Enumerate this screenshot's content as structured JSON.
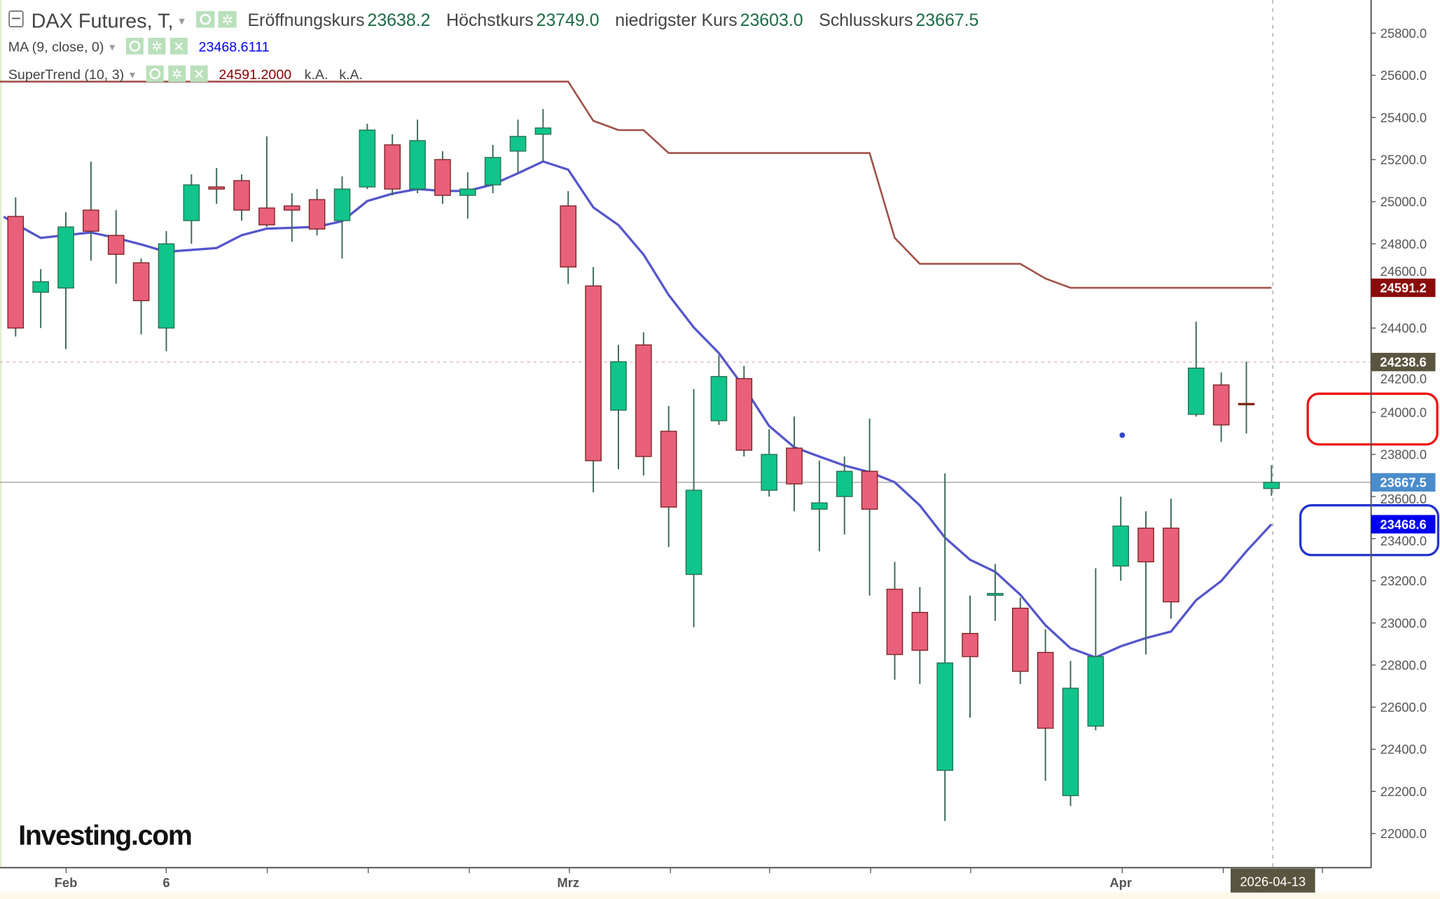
{
  "header": {
    "symbol": "DAX Futures, T,",
    "open_label": "Eröffnungskurs",
    "open_value": "23638.2",
    "high_label": "Höchstkurs",
    "high_value": "23749.0",
    "low_label": "niedrigster Kurs",
    "low_value": "23603.0",
    "close_label": "Schlusskurs",
    "close_value": "23667.5"
  },
  "indicators": [
    {
      "label": "MA (9, close, 0)",
      "value": "23468.6111",
      "color": "#0000ee"
    },
    {
      "label": "SuperTrend (10, 3)",
      "value": "24591.2000",
      "extra1": "k.A.",
      "extra2": "k.A.",
      "color": "#8b0000"
    }
  ],
  "logo": "Investing.com",
  "colors": {
    "up": "#10c48b",
    "down": "#e8607a",
    "ma": "#5555cc",
    "supertrend": "#a0524a"
  },
  "chart_data": {
    "type": "candlestick",
    "ylim": [
      21800,
      25950
    ],
    "y_ticks": [
      22000,
      22200,
      22400,
      22600,
      22800,
      23000,
      23200,
      23400,
      23600,
      23800,
      24000,
      24200,
      24400,
      24600,
      24800,
      25000,
      25200,
      25400,
      25600,
      25800
    ],
    "y_tick_labels": [
      "22000.0",
      "22200.0",
      "22400.0",
      "22600.0",
      "22800.0",
      "23000.0",
      "23200.0",
      "23400.0",
      "23600.0",
      "23800.0",
      "24000.0",
      "24200.0",
      "24400.0",
      "24600.0",
      "24800.0",
      "25000.0",
      "25200.0",
      "25400.0",
      "25600.0",
      "25800.0"
    ],
    "x_labels": [
      {
        "index": 2,
        "label": "Feb"
      },
      {
        "index": 6,
        "label": "6"
      },
      {
        "index": 22,
        "label": "Mrz"
      },
      {
        "index": 44,
        "label": "Apr"
      }
    ],
    "crosshair_date": "2026-04-13",
    "candles": [
      [
        24930,
        25020,
        24360,
        24400
      ],
      [
        24570,
        24680,
        24400,
        24620
      ],
      [
        24590,
        24950,
        24300,
        24880
      ],
      [
        24960,
        25190,
        24720,
        24860
      ],
      [
        24840,
        24960,
        24610,
        24750
      ],
      [
        24710,
        24730,
        24370,
        24530
      ],
      [
        24400,
        24860,
        24290,
        24800
      ],
      [
        24910,
        25130,
        24800,
        25080
      ],
      [
        25070,
        25160,
        24990,
        25060
      ],
      [
        25100,
        25130,
        24910,
        24960
      ],
      [
        24970,
        25310,
        24880,
        24890
      ],
      [
        24980,
        25040,
        24810,
        24960
      ],
      [
        25010,
        25060,
        24840,
        24870
      ],
      [
        24910,
        25120,
        24730,
        25060
      ],
      [
        25070,
        25370,
        25060,
        25340
      ],
      [
        25270,
        25320,
        25030,
        25060
      ],
      [
        25060,
        25390,
        25040,
        25290
      ],
      [
        25200,
        25240,
        24990,
        25030
      ],
      [
        25030,
        25140,
        24920,
        25060
      ],
      [
        25080,
        25270,
        25040,
        25210
      ],
      [
        25240,
        25390,
        25140,
        25310
      ],
      [
        25320,
        25440,
        25190,
        25350
      ],
      [
        24980,
        25050,
        24610,
        24690
      ],
      [
        24600,
        24690,
        23620,
        23770
      ],
      [
        24010,
        24320,
        23730,
        24240
      ],
      [
        24320,
        24380,
        23700,
        23790
      ],
      [
        23910,
        24030,
        23360,
        23550
      ],
      [
        23230,
        24110,
        22980,
        23630
      ],
      [
        23960,
        24270,
        23940,
        24170
      ],
      [
        24160,
        24220,
        23790,
        23820
      ],
      [
        23630,
        23920,
        23600,
        23800
      ],
      [
        23830,
        23980,
        23530,
        23660
      ],
      [
        23540,
        23770,
        23340,
        23570
      ],
      [
        23600,
        23790,
        23420,
        23720
      ],
      [
        23720,
        23970,
        23130,
        23540
      ],
      [
        23160,
        23290,
        22730,
        22850
      ],
      [
        23050,
        23170,
        22710,
        22870
      ],
      [
        22300,
        23710,
        22060,
        22810
      ],
      [
        22950,
        23130,
        22550,
        22840
      ],
      [
        23135,
        23280,
        23010,
        23140
      ],
      [
        23070,
        23120,
        22710,
        22770
      ],
      [
        22860,
        22970,
        22250,
        22500
      ],
      [
        22180,
        22820,
        22130,
        22690
      ],
      [
        22510,
        23260,
        22490,
        22840
      ],
      [
        23270,
        23600,
        23200,
        23460
      ],
      [
        23450,
        23530,
        22850,
        23290
      ],
      [
        23450,
        23590,
        23020,
        23100
      ],
      [
        23990,
        24430,
        23980,
        24210
      ],
      [
        24130,
        24190,
        23860,
        23940
      ],
      [
        24040,
        24240,
        23900,
        24040
      ],
      [
        23638.2,
        23749.0,
        23603.0,
        23667.5
      ]
    ],
    "ma": [
      24894,
      24828,
      24841,
      24854,
      24828,
      24797,
      24762,
      24771,
      24780,
      24841,
      24872,
      24876,
      24881,
      24907,
      25003,
      25038,
      25060,
      25051,
      25051,
      25082,
      25135,
      25191,
      25152,
      24973,
      24889,
      24749,
      24557,
      24403,
      24281,
      24119,
      23935,
      23834,
      23790,
      23747,
      23716,
      23668,
      23558,
      23405,
      23300,
      23243,
      23134,
      22989,
      22880,
      22836,
      22889,
      22928,
      22959,
      23108,
      23199,
      23340,
      23468.6
    ],
    "supertrend": [
      25570,
      25570,
      25570,
      25570,
      25570,
      25570,
      25570,
      25570,
      25570,
      25570,
      25570,
      25570,
      25570,
      25570,
      25570,
      25570,
      25570,
      25570,
      25570,
      25570,
      25570,
      25570,
      25570,
      25384,
      25340,
      25340,
      25231,
      25231,
      25231,
      25231,
      25231,
      25231,
      25231,
      25231,
      25231,
      24828,
      24705,
      24705,
      24705,
      24705,
      24705,
      24635,
      24591.2,
      24591.2,
      24591.2,
      24591.2,
      24591.2,
      24591.2,
      24591.2,
      24591.2,
      24591.2
    ],
    "badges": [
      {
        "label": "24591.2",
        "value": 24591.2,
        "color": "#8b0a0a"
      },
      {
        "label": "24238.6",
        "value": 24238.6,
        "color": "#5a5540"
      },
      {
        "label": "23667.5",
        "value": 23667.5,
        "color": "#4a8ccc"
      },
      {
        "label": "23468.6",
        "value": 23468.6,
        "color": "#0000ee"
      }
    ],
    "ref_lines": [
      {
        "value": 24238.6,
        "style": "dotted-pink"
      },
      {
        "value": 23667.5,
        "style": "solid-gray"
      }
    ]
  }
}
